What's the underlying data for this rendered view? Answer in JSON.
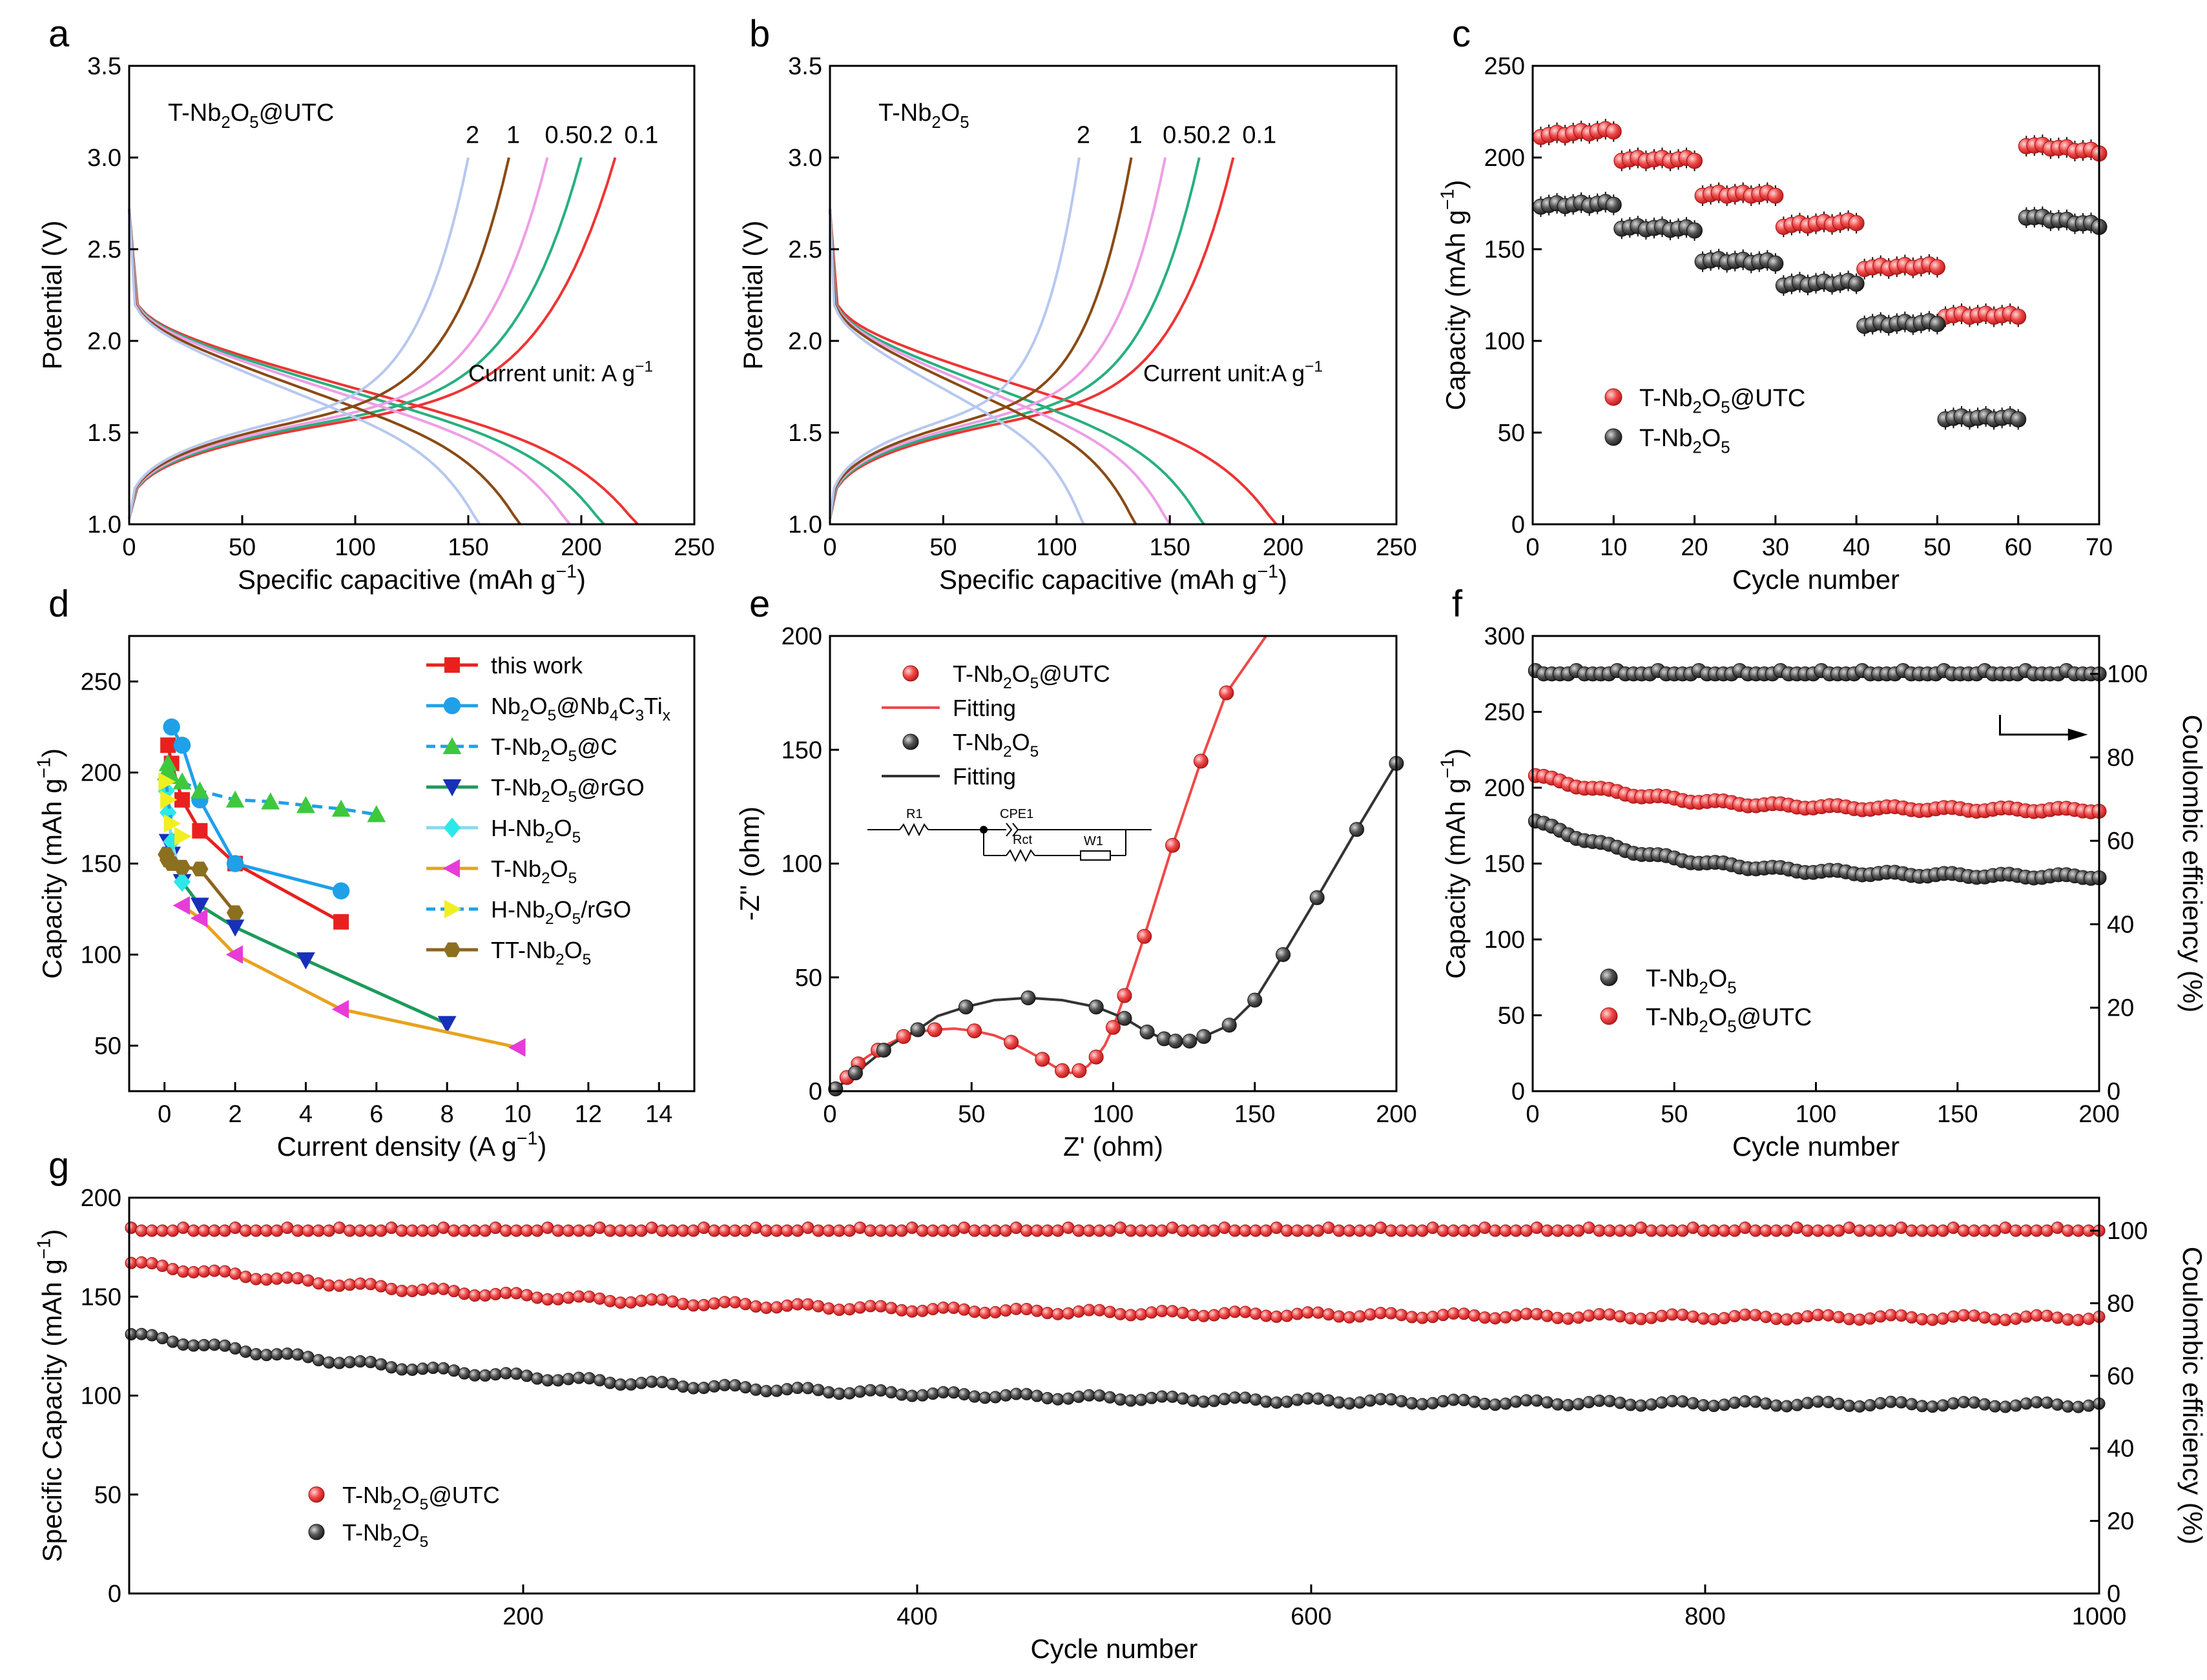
{
  "figure": {
    "panel_letters": [
      "a",
      "b",
      "c",
      "d",
      "e",
      "f",
      "g"
    ]
  },
  "chart_data": [
    {
      "id": "a",
      "type": "line",
      "title": "T-Nb2O5@UTC",
      "annotation": "Current unit: A g-1",
      "xlabel": "Specific capacitive (mAh g-1)",
      "ylabel": "Potential (V)",
      "xlim": [
        0,
        250
      ],
      "ylim": [
        1.0,
        3.5
      ],
      "xticks": [
        0,
        50,
        100,
        150,
        200,
        250
      ],
      "yticks": [
        1.0,
        1.5,
        2.0,
        2.5,
        3.0,
        3.5
      ],
      "series": [
        {
          "name": "0.1",
          "color": "#ee3434",
          "charge_end": 215,
          "discharge_end": 225
        },
        {
          "name": "0.2",
          "color": "#27b07e",
          "charge_end": 200,
          "discharge_end": 210
        },
        {
          "name": "0.5",
          "color": "#ee9ee6",
          "charge_end": 185,
          "discharge_end": 195
        },
        {
          "name": "1",
          "color": "#8a4a14",
          "charge_end": 168,
          "discharge_end": 173
        },
        {
          "name": "2",
          "color": "#b7c8ef",
          "charge_end": 150,
          "discharge_end": 155
        }
      ]
    },
    {
      "id": "b",
      "type": "line",
      "title": "T-Nb2O5",
      "annotation": "Current unit:A g-1",
      "xlabel": "Specific capacitive (mAh g-1)",
      "ylabel": "Potential (V)",
      "xlim": [
        0,
        250
      ],
      "ylim": [
        1.0,
        3.5
      ],
      "xticks": [
        0,
        50,
        100,
        150,
        200,
        250
      ],
      "yticks": [
        1.0,
        1.5,
        2.0,
        2.5,
        3.0,
        3.5
      ],
      "series": [
        {
          "name": "0.1",
          "color": "#ee3434",
          "charge_end": 178,
          "discharge_end": 197
        },
        {
          "name": "0.2",
          "color": "#27b07e",
          "charge_end": 163,
          "discharge_end": 165
        },
        {
          "name": "0.5",
          "color": "#ee9ee6",
          "charge_end": 148,
          "discharge_end": 150
        },
        {
          "name": "1",
          "color": "#8a4a14",
          "charge_end": 133,
          "discharge_end": 135
        },
        {
          "name": "2",
          "color": "#b7c8ef",
          "charge_end": 110,
          "discharge_end": 112
        }
      ]
    },
    {
      "id": "c",
      "type": "scatter",
      "xlabel": "Cycle number",
      "ylabel": "Capacity (mAh g-1)",
      "xlim": [
        0,
        70
      ],
      "ylim": [
        0,
        250
      ],
      "xticks": [
        0,
        10,
        20,
        30,
        40,
        50,
        60,
        70
      ],
      "yticks": [
        0,
        50,
        100,
        150,
        200,
        250
      ],
      "legend": "bottom-left",
      "series": [
        {
          "name": "T-Nb2O5@UTC",
          "color": "#ee3434",
          "segments": [
            [
              212,
              215
            ],
            [
              199,
              199
            ],
            [
              180,
              180
            ],
            [
              163,
              165
            ],
            [
              140,
              141
            ],
            [
              114,
              114
            ],
            [
              207,
              203
            ]
          ]
        },
        {
          "name": "T-Nb2O5",
          "color": "#404040",
          "segments": [
            [
              174,
              175
            ],
            [
              162,
              161
            ],
            [
              144,
              143
            ],
            [
              131,
              132
            ],
            [
              109,
              110
            ],
            [
              58,
              58
            ],
            [
              168,
              163
            ]
          ]
        }
      ]
    },
    {
      "id": "d",
      "type": "line",
      "xlabel": "Current density (A g-1)",
      "ylabel": "Capacity (mAh g-1)",
      "xlim": [
        -1,
        15
      ],
      "ylim": [
        25,
        275
      ],
      "xticks": [
        0,
        2,
        4,
        6,
        8,
        10,
        12,
        14
      ],
      "yticks": [
        50,
        100,
        150,
        200,
        250
      ],
      "legend": "top-right",
      "series": [
        {
          "name": "this work",
          "color": "#e8211f",
          "marker": "square",
          "dash": false,
          "x": [
            0.1,
            0.2,
            0.5,
            1,
            2,
            5
          ],
          "y": [
            215,
            205,
            185,
            168,
            150,
            118
          ]
        },
        {
          "name": "Nb2O5@Nb4C3Tix",
          "color": "#1fa0e8",
          "marker": "circle",
          "dash": false,
          "x": [
            0.2,
            0.5,
            1,
            2,
            5
          ],
          "y": [
            225,
            215,
            185,
            150,
            135
          ]
        },
        {
          "name": "T-Nb2O5@C",
          "color": "#1fa0e8",
          "marker": "triangle",
          "markerColor": "#3ec83e",
          "dash": true,
          "x": [
            0.05,
            0.1,
            0.2,
            0.5,
            1,
            2,
            3,
            4,
            5,
            6
          ],
          "y": [
            200,
            205,
            198,
            195,
            190,
            185,
            184,
            182,
            180,
            177
          ]
        },
        {
          "name": "T-Nb2O5@rGO",
          "color": "#1c9a5a",
          "marker": "triangle-down",
          "markerColor": "#1830b8",
          "dash": false,
          "x": [
            0.1,
            0.2,
            0.5,
            1,
            2,
            4,
            8
          ],
          "y": [
            162,
            155,
            140,
            127,
            115,
            97,
            62
          ]
        },
        {
          "name": "H-Nb2O5",
          "color": "#8ad8f0",
          "marker": "diamond",
          "markerColor": "#2ce8e8",
          "dash": false,
          "x": [
            0.05,
            0.1,
            0.2,
            0.5
          ],
          "y": [
            190,
            178,
            162,
            140
          ]
        },
        {
          "name": "T-Nb2O5",
          "color": "#e8a21f",
          "marker": "triangle-left",
          "markerColor": "#e83cd8",
          "dash": false,
          "x": [
            0.5,
            1,
            2,
            5,
            10
          ],
          "y": [
            127,
            120,
            100,
            70,
            49
          ]
        },
        {
          "name": "H-Nb2O5/rGO",
          "color": "#1fa0e8",
          "marker": "triangle-right",
          "markerColor": "#f0f020",
          "dash": true,
          "x": [
            0.05,
            0.1,
            0.2,
            0.5
          ],
          "y": [
            195,
            185,
            172,
            165
          ]
        },
        {
          "name": "TT-Nb2O5",
          "color": "#8b6420",
          "marker": "hexagon",
          "markerColor": "#8b7020",
          "dash": false,
          "x": [
            0.05,
            0.1,
            0.2,
            0.5,
            1,
            2
          ],
          "y": [
            155,
            152,
            150,
            148,
            147,
            123
          ]
        }
      ]
    },
    {
      "id": "e",
      "type": "scatter",
      "xlabel": "Z' (ohm)",
      "ylabel": "-Z'' (ohm)",
      "xlim": [
        0,
        200
      ],
      "ylim": [
        0,
        200
      ],
      "xticks": [
        0,
        50,
        100,
        150,
        200
      ],
      "yticks": [
        0,
        50,
        100,
        150,
        200
      ],
      "legend": "top-left",
      "circuit_labels": [
        "R1",
        "CPE1",
        "Rct",
        "W1"
      ],
      "legend_entries": [
        "T-Nb2O5@UTC",
        "Fitting",
        "T-Nb2O5",
        "Fitting"
      ],
      "series": [
        {
          "name": "T-Nb2O5@UTC",
          "color": "#ee3434",
          "x": [
            2,
            4,
            6,
            8,
            10,
            13,
            17,
            21,
            26,
            31,
            37,
            44,
            51,
            58,
            64,
            70,
            75,
            79,
            82,
            85,
            88,
            91,
            94,
            97,
            100,
            104,
            111,
            121,
            131,
            140
          ],
          "y": [
            1,
            3,
            6,
            9,
            12,
            15,
            18,
            21,
            24,
            26,
            27,
            27.5,
            26.5,
            24.5,
            21.5,
            17.5,
            14,
            11,
            9,
            8,
            9,
            11,
            15,
            20,
            28,
            42,
            68,
            108,
            145,
            175
          ]
        },
        {
          "name": "T-Nb2O5",
          "color": "#404040",
          "x": [
            2,
            5,
            9,
            14,
            19,
            25,
            31,
            38,
            48,
            58,
            70,
            82,
            94,
            104,
            112,
            118,
            122,
            127,
            132,
            141,
            150,
            160,
            172,
            186,
            200
          ],
          "y": [
            1,
            4,
            8,
            13,
            18,
            23,
            27,
            33,
            37,
            40,
            41,
            40,
            37,
            32,
            26,
            23,
            22,
            22,
            24,
            29,
            40,
            60,
            85,
            115,
            144
          ]
        }
      ]
    },
    {
      "id": "f",
      "type": "scatter",
      "xlabel": "Cycle number",
      "ylabel": "Capacity (mAh g-1)",
      "y2label": "Coulombic efficiency (%)",
      "xlim": [
        0,
        200
      ],
      "ylim": [
        0,
        300
      ],
      "y2lim": [
        0,
        109.09
      ],
      "xticks": [
        0,
        50,
        100,
        150,
        200
      ],
      "yticks": [
        0,
        50,
        100,
        150,
        200,
        250,
        300
      ],
      "y2ticks": [
        0,
        20,
        40,
        60,
        80,
        100
      ],
      "legend": "bottom-left",
      "series": [
        {
          "name": "T-Nb2O5",
          "color": "#404040",
          "start": 178,
          "end": 141,
          "ce": 100
        },
        {
          "name": "T-Nb2O5@UTC",
          "color": "#ee3434",
          "start": 208,
          "end": 185,
          "ce": 100
        }
      ]
    },
    {
      "id": "g",
      "type": "scatter",
      "xlabel": "Cycle number",
      "ylabel": "Specific Capacity (mAh g-1)",
      "y2label": "Coulombic efficiency (%)",
      "xlim": [
        0,
        1000
      ],
      "ylim": [
        0,
        200
      ],
      "y2lim": [
        0,
        109.09
      ],
      "xticks": [
        200,
        400,
        600,
        800,
        1000
      ],
      "yticks": [
        0,
        50,
        100,
        150,
        200
      ],
      "y2ticks": [
        0,
        20,
        40,
        60,
        80,
        100
      ],
      "legend": "bottom-left",
      "series": [
        {
          "name": "T-Nb2O5@UTC",
          "color": "#ee3434",
          "start": 167,
          "end": 139,
          "ce": 100
        },
        {
          "name": "T-Nb2O5",
          "color": "#404040",
          "start": 131,
          "end": 95,
          "ce": 100
        }
      ]
    }
  ]
}
